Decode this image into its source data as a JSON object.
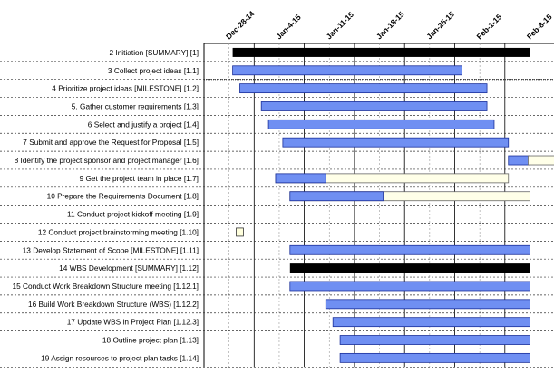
{
  "chart_data": {
    "type": "gantt",
    "dates": [
      "Dec-28-14",
      "Jan-4-15",
      "Jan-11-15",
      "Jan-18-15",
      "Jan-25-15",
      "Feb-1-15",
      "Feb-8-15"
    ],
    "tasks": [
      {
        "label": "2  Initiation [SUMMARY] [1]",
        "start": 4.0,
        "end": 45.5,
        "kind": "summary"
      },
      {
        "label": "3  Collect project ideas  [1.1]",
        "start": 4.0,
        "end": 36.0,
        "kind": "task"
      },
      {
        "label": "4  Prioritize project ideas [MILESTONE] [1.2]",
        "start": 5.0,
        "end": 39.5,
        "kind": "task"
      },
      {
        "label": "5.  Gather customer requirements  [1.3]",
        "start": 8.0,
        "end": 39.5,
        "kind": "task"
      },
      {
        "label": "6  Select and justify a project  [1.4]",
        "start": 9.0,
        "end": 40.5,
        "kind": "task"
      },
      {
        "label": "7  Submit and approve the Request for Proposal [1.5]",
        "start": 11.0,
        "end": 42.5,
        "kind": "task"
      },
      {
        "label": "8  Identify the project sponsor and project manager [1.6]",
        "start": 42.5,
        "end": 45.5,
        "progress_end": 45.5,
        "kind": "task"
      },
      {
        "label": "9  Get the project team in place  [1.7]",
        "start": 10.0,
        "end": 42.5,
        "progress_end": 17.0,
        "kind": "task"
      },
      {
        "label": "10  Prepare the Requirements Document  [1.8]",
        "start": 12.0,
        "end": 45.5,
        "progress_end": 25.0,
        "kind": "task"
      },
      {
        "label": "11  Conduct project kickoff meeting  [1.9]",
        "kind": "none"
      },
      {
        "label": "12  Conduct project brainstorming meeting  [1.10]",
        "start": 4.5,
        "end": 5.5,
        "kind": "milestone"
      },
      {
        "label": "13  Develop Statement of Scope [MILESTONE] [1.11]",
        "start": 12.0,
        "end": 45.5,
        "kind": "task"
      },
      {
        "label": "14  WBS Development [SUMMARY] [1.12]",
        "start": 12.0,
        "end": 45.5,
        "kind": "summary"
      },
      {
        "label": "15  Conduct Work Breakdown Structure meeting  [1.12.1]",
        "start": 12.0,
        "end": 45.5,
        "kind": "task"
      },
      {
        "label": "16  Build Work Breakdown Structure (WBS)  [1.12.2]",
        "start": 17.0,
        "end": 45.5,
        "kind": "task"
      },
      {
        "label": "17  Update WBS in Project Plan  [1.12.3]",
        "start": 18.0,
        "end": 45.5,
        "kind": "task"
      },
      {
        "label": "18  Outline project plan  [1.13]",
        "start": 19.0,
        "end": 45.5,
        "kind": "task"
      },
      {
        "label": "19  Assign resources to project plan tasks  [1.14]",
        "start": 19.0,
        "end": 45.5,
        "kind": "task"
      }
    ],
    "colors": {
      "task": "#6f8ff2",
      "task_border": "#1a2f9a",
      "summary": "#000000",
      "remaining": "#ffffe8",
      "milestone": "#ffffdd"
    }
  }
}
